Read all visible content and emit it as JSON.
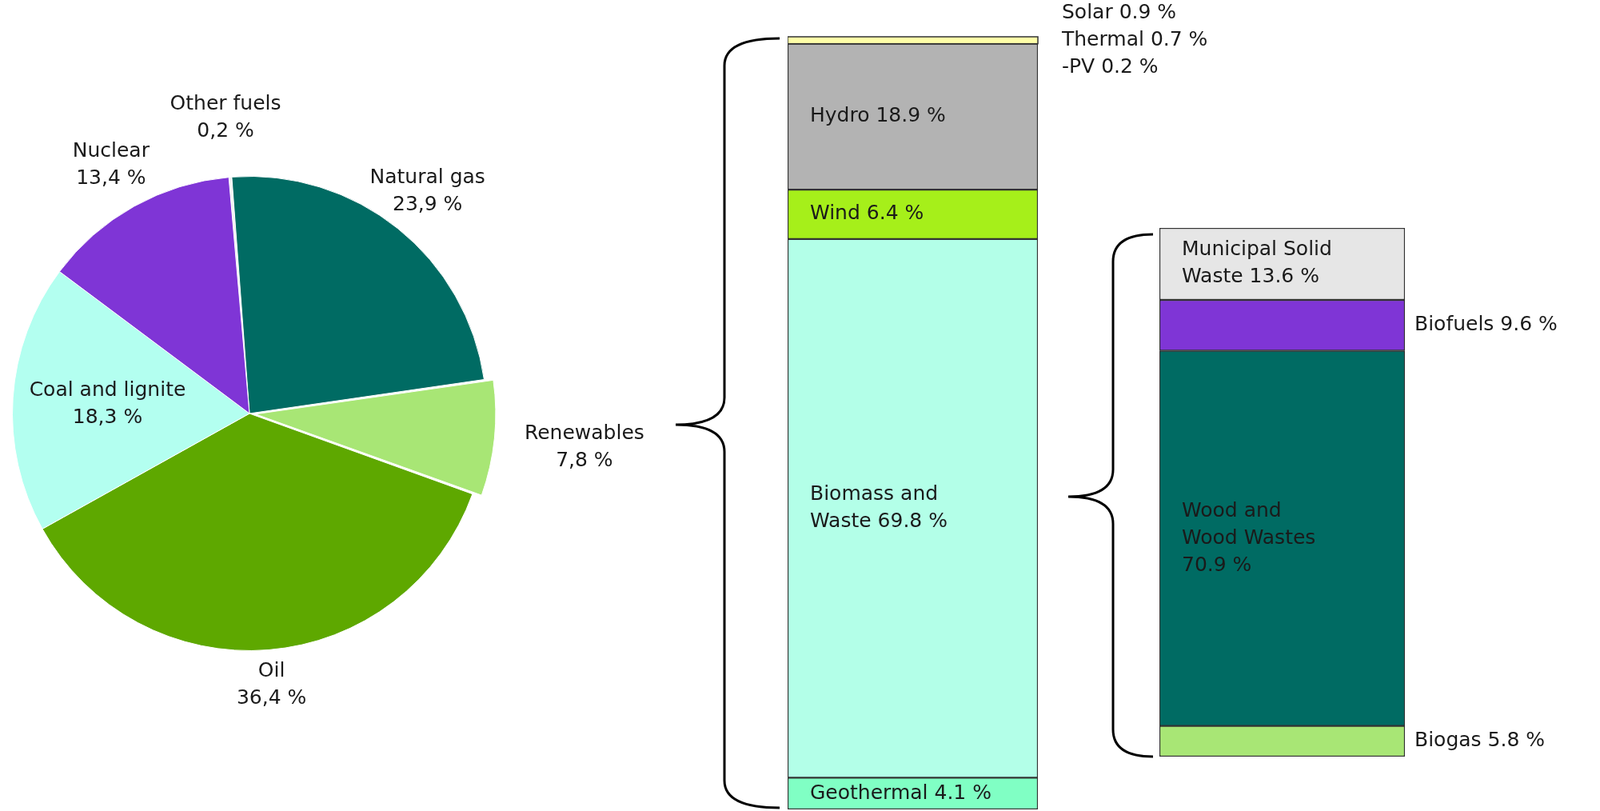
{
  "chart_data": [
    {
      "type": "pie",
      "categories": [
        "Other fuels",
        "Natural gas",
        "Renewables",
        "Oil",
        "Coal and lignite",
        "Nuclear"
      ],
      "values": [
        0.2,
        23.9,
        7.8,
        36.4,
        18.3,
        13.4
      ],
      "value_labels": [
        "0,2 %",
        "23,9 %",
        "7,8 %",
        "36,4 %",
        "18,3 %",
        "13,4 %"
      ],
      "colors": [
        "#f2f2f2",
        "#006b63",
        "#a8e675",
        "#5ea800",
        "#b3fff0",
        "#7f35d6"
      ],
      "data_labels": true
    },
    {
      "type": "bar",
      "stacked": true,
      "tick_labels": false,
      "data_labels": true,
      "series": [
        {
          "name": "Geothermal",
          "color": "#80ffc4",
          "values": [
            4.1
          ],
          "value_labels": [
            "Geothermal 4.1 %"
          ]
        },
        {
          "name": "Biomass and Waste",
          "color": "#b3ffe8",
          "values": [
            69.8
          ],
          "value_labels": [
            "Biomass and\nWaste 69.8 %"
          ]
        },
        {
          "name": "Wind",
          "color": "#a6ef1a",
          "values": [
            6.4
          ],
          "value_labels": [
            "Wind 6.4 %"
          ]
        },
        {
          "name": "Hydro",
          "color": "#b3b3b3",
          "values": [
            18.9
          ],
          "value_labels": [
            "Hydro 18.9 %"
          ]
        },
        {
          "name": "Solar",
          "color": "#ffffa8",
          "values": [
            0.9
          ],
          "value_labels": [
            "Solar 0.9 %"
          ],
          "parts": [
            {
              "name": "Thermal",
              "values": [
                0.7
              ],
              "value_labels": [
                "Thermal 0.7 %"
              ]
            },
            {
              "name": "-PV",
              "values": [
                0.2
              ],
              "value_labels": [
                "-PV 0.2 %"
              ]
            }
          ]
        }
      ]
    },
    {
      "type": "bar",
      "stacked": true,
      "tick_labels": false,
      "data_labels": true,
      "series": [
        {
          "name": "Biogas",
          "color": "#a8e675",
          "values": [
            5.8
          ],
          "value_labels": [
            "Biogas 5.8 %"
          ]
        },
        {
          "name": "Wood and Wood Wastes",
          "color": "#006b63",
          "values": [
            70.9
          ],
          "value_labels": [
            "Wood and\nWood Wastes\n70.9 %"
          ]
        },
        {
          "name": "Biofuels",
          "color": "#7f35d6",
          "values": [
            9.6
          ],
          "value_labels": [
            "Biofuels 9.6 %"
          ]
        },
        {
          "name": "Municipal Solid Waste",
          "color": "#e6e6e6",
          "values": [
            13.6
          ],
          "value_labels": [
            "Municipal Solid\nWaste 13.6 %"
          ]
        }
      ]
    }
  ]
}
